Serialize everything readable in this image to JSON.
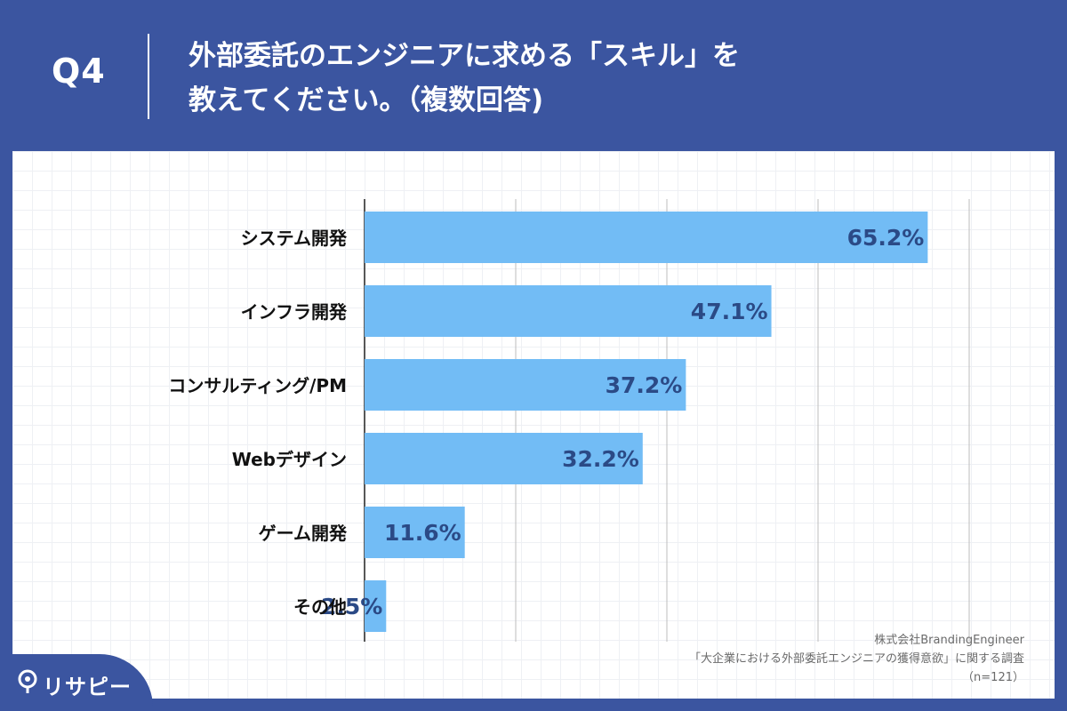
{
  "header": {
    "question_no": "Q4",
    "title_line1": "外部委託のエンジニアに求める「スキル」を",
    "title_line2": "教えてください。（複数回答)"
  },
  "source": {
    "company": "株式会社BrandingEngineer",
    "survey": "「大企業における外部委託エンジニアの獲得意欲」に関する調査",
    "sample": "（n=121）"
  },
  "logo": {
    "text": "リサピー"
  },
  "colors": {
    "header_bg": "#3b55a0",
    "bar": "#72bcf5",
    "value_label": "#2b4a86",
    "category_label": "#111111",
    "gridline": "#bdbdbd"
  },
  "chart_data": {
    "type": "bar",
    "orientation": "horizontal",
    "title": "外部委託のエンジニアに求める「スキル」を教えてください。（複数回答)",
    "categories": [
      "システム開発",
      "インフラ開発",
      "コンサルティング/PM",
      "Webデザイン",
      "ゲーム開発",
      "その他"
    ],
    "values": [
      65.2,
      47.1,
      37.2,
      32.2,
      11.6,
      2.5
    ],
    "value_labels": [
      "65.2%",
      "47.1%",
      "37.2%",
      "32.2%",
      "11.6%",
      "2.5%"
    ],
    "unit": "%",
    "xlim": [
      0,
      70
    ],
    "gridlines_at": [
      0,
      17.5,
      35,
      52.5,
      70
    ],
    "xlabel": "",
    "ylabel": ""
  }
}
